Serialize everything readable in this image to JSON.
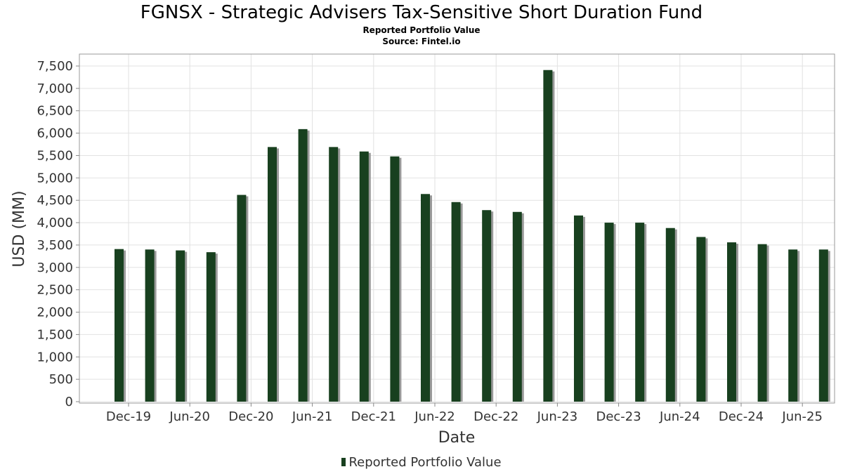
{
  "chart_data": {
    "type": "bar",
    "title": "FGNSX - Strategic Advisers Tax-Sensitive Short Duration Fund",
    "subtitle": "Reported Portfolio Value",
    "source": "Source: Fintel.io",
    "xlabel": "Date",
    "ylabel": "USD (MM)",
    "ylim": [
      0,
      7500
    ],
    "yticks": [
      0,
      500,
      1000,
      1500,
      2000,
      2500,
      3000,
      3500,
      4000,
      4500,
      5000,
      5500,
      6000,
      6500,
      7000,
      7500
    ],
    "ytick_labels": [
      "0",
      "500",
      "1,000",
      "1,500",
      "2,000",
      "2,500",
      "3,000",
      "3,500",
      "4,000",
      "4,500",
      "5,000",
      "5,500",
      "6,000",
      "6,500",
      "7,000",
      "7,500"
    ],
    "xtick_labels": [
      "Dec-19",
      "Jun-20",
      "Dec-20",
      "Jun-21",
      "Dec-21",
      "Jun-22",
      "Dec-22",
      "Jun-23",
      "Dec-23",
      "Jun-24",
      "Dec-24",
      "Jun-25"
    ],
    "legend": [
      "Reported Portfolio Value"
    ],
    "bar_color": "#18401f",
    "categories": [
      "Sep-19",
      "Dec-19",
      "Mar-20",
      "Jun-20",
      "Sep-20",
      "Dec-20",
      "Mar-21",
      "Jun-21",
      "Sep-21",
      "Dec-21",
      "Mar-22",
      "Jun-22",
      "Sep-22",
      "Dec-22",
      "Mar-23",
      "Jun-23",
      "Sep-23",
      "Dec-23",
      "Mar-24",
      "Jun-24",
      "Sep-24",
      "Dec-24",
      "Mar-25",
      "Jun-25"
    ],
    "values": [
      3410,
      3400,
      3380,
      3340,
      4620,
      5690,
      6090,
      5690,
      5590,
      5480,
      4640,
      4460,
      4280,
      4240,
      7410,
      4160,
      4000,
      4000,
      3880,
      3680,
      3560,
      3520,
      3400,
      3400
    ]
  }
}
